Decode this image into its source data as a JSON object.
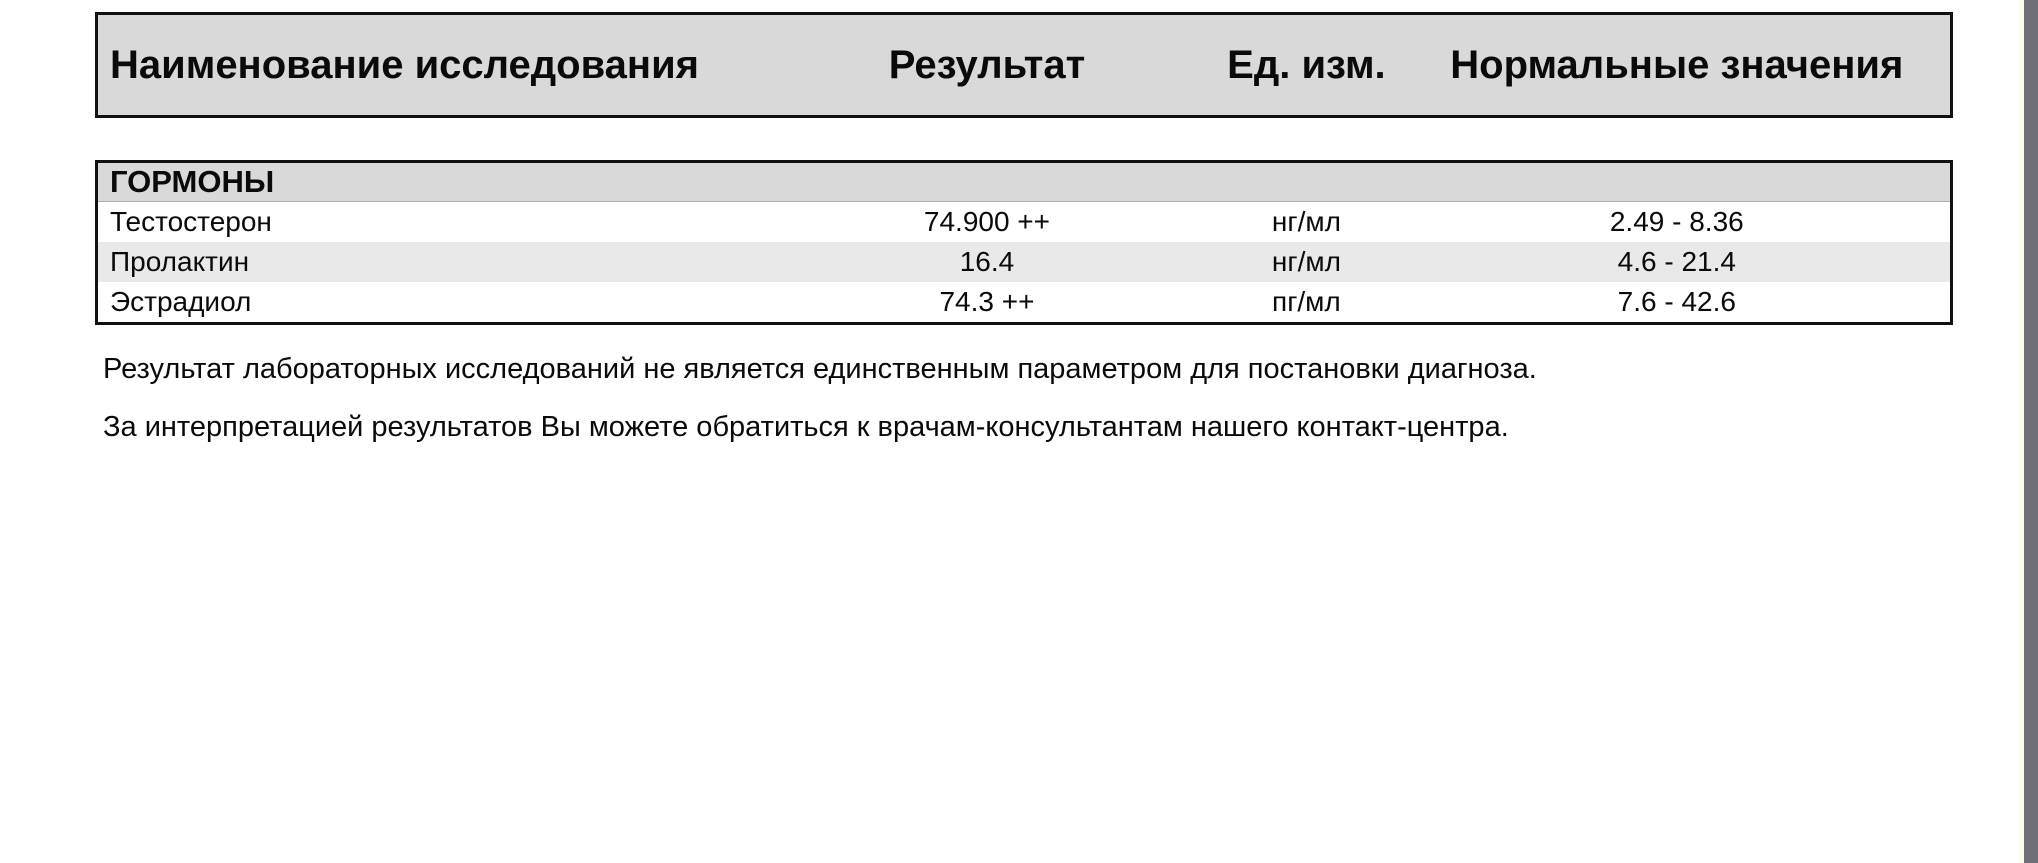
{
  "report": {
    "columns": [
      "Наименование исследования",
      "Результат",
      "Ед. изм.",
      "Нормальные значения"
    ],
    "section": "ГОРМОНЫ",
    "rows": [
      {
        "name": "Тестостерон",
        "result": "74.900 ++",
        "unit": "нг/мл",
        "normal": "2.49 - 8.36"
      },
      {
        "name": "Пролактин",
        "result": "16.4",
        "unit": "нг/мл",
        "normal": "4.6 - 21.4"
      },
      {
        "name": "Эстрадиол",
        "result": "74.3 ++",
        "unit": "пг/мл",
        "normal": "7.6 - 42.6"
      }
    ],
    "notes": [
      "Результат лабораторных исследований не является единственным параметром для постановки диагноза.",
      "За интерпретацией результатов Вы можете обратиться к врачам-консультантам нашего контакт-центра."
    ],
    "colors": {
      "header_bg": "#d9d9d9",
      "row_alt_bg": "#e9e9e9",
      "table_border": "#111111",
      "viewer_edge_strip": "#6d7177",
      "page_edge_strip": "#fdfcec"
    }
  }
}
